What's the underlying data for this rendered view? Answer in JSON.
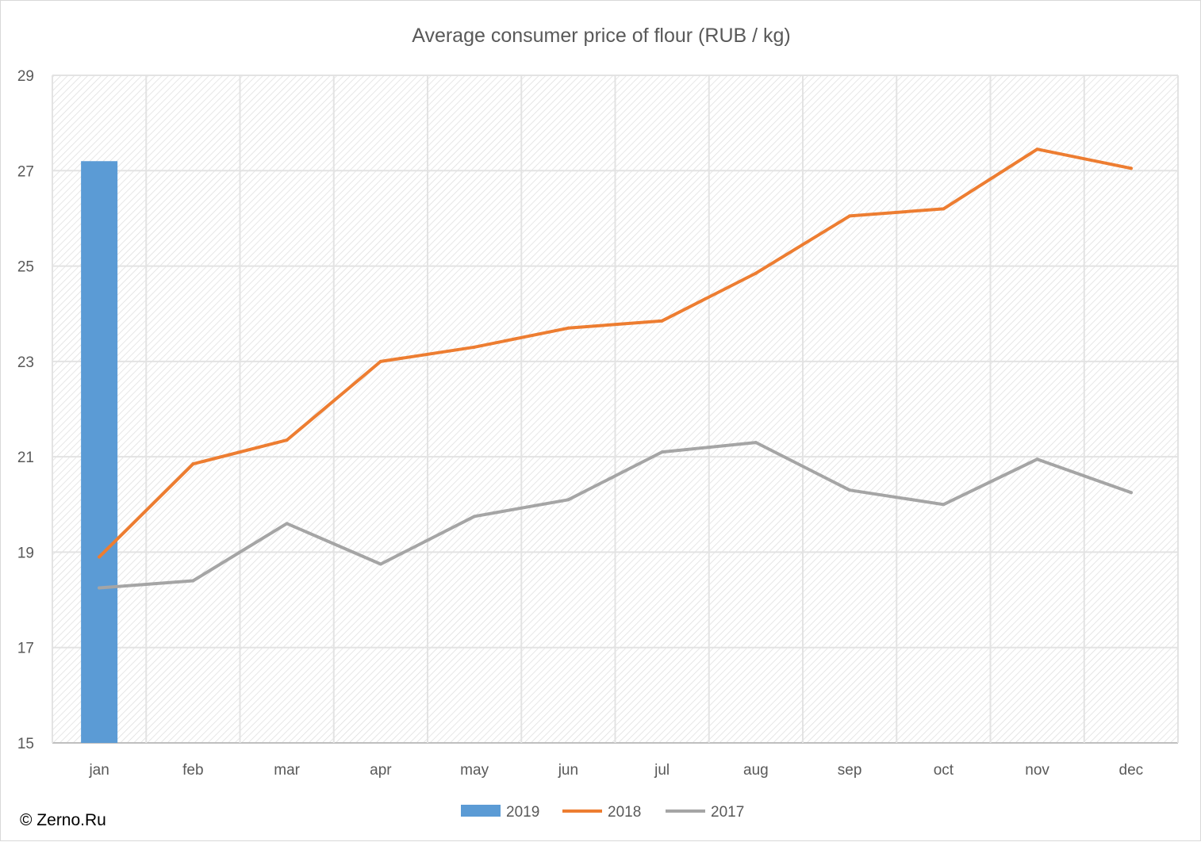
{
  "chart_data": {
    "type": "bar",
    "title": "Average consumer price of flour (RUB / kg)",
    "categories": [
      "jan",
      "feb",
      "mar",
      "apr",
      "may",
      "jun",
      "jul",
      "aug",
      "sep",
      "oct",
      "nov",
      "dec"
    ],
    "ylim": [
      15,
      29
    ],
    "yticks": [
      15,
      17,
      19,
      21,
      23,
      25,
      27,
      29
    ],
    "grid": true,
    "legend_position": "bottom",
    "series": [
      {
        "name": "2019",
        "type": "bar",
        "color": "#5b9bd5",
        "values": [
          27.2,
          null,
          null,
          null,
          null,
          null,
          null,
          null,
          null,
          null,
          null,
          null
        ]
      },
      {
        "name": "2018",
        "type": "line",
        "color": "#ed7d31",
        "values": [
          18.9,
          20.85,
          21.35,
          23.0,
          23.3,
          23.7,
          23.85,
          24.85,
          26.05,
          26.2,
          27.45,
          27.05
        ]
      },
      {
        "name": "2017",
        "type": "line",
        "color": "#a5a5a5",
        "values": [
          18.25,
          18.4,
          19.6,
          18.75,
          19.75,
          20.1,
          21.1,
          21.3,
          20.3,
          20.0,
          20.95,
          20.25
        ]
      }
    ]
  },
  "credit": "© Zerno.Ru"
}
